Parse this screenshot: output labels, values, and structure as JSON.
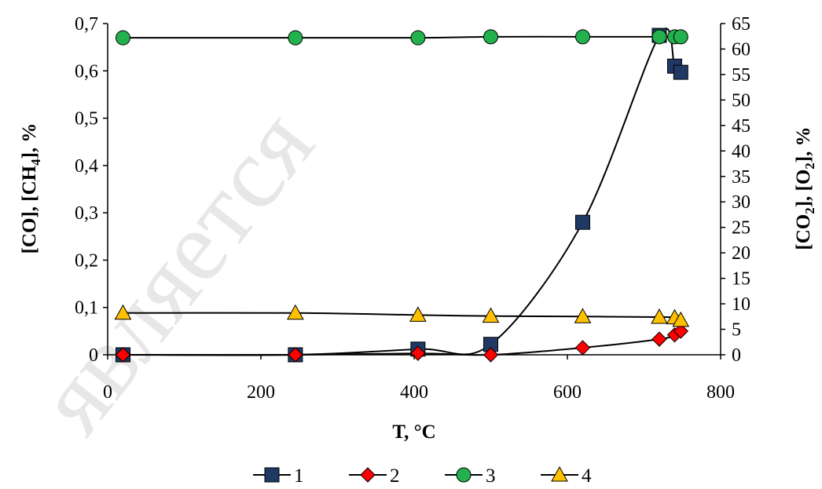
{
  "chart_data": {
    "type": "scatter",
    "xlabel": "T, °C",
    "ylabel_left": "[CO], [CH4], %",
    "ylabel_left_parts": [
      "[CO], [CH",
      "4",
      "], %"
    ],
    "ylabel_right": "[CO2], [O2], %",
    "ylabel_right_parts": [
      "[CO",
      "2",
      "], [O",
      "2",
      "], %"
    ],
    "xlim": [
      0,
      800
    ],
    "xticks": [
      0,
      200,
      400,
      600,
      800
    ],
    "ylim_left": [
      0,
      0.7
    ],
    "yticks_left": [
      "0",
      "0,1",
      "0,2",
      "0,3",
      "0,4",
      "0,5",
      "0,6",
      "0,7"
    ],
    "ylim_right": [
      0,
      65
    ],
    "yticks_right": [
      "0",
      "5",
      "10",
      "15",
      "20",
      "25",
      "30",
      "35",
      "40",
      "45",
      "50",
      "55",
      "60",
      "65"
    ],
    "legend_position": "bottom",
    "watermark": "является",
    "series": [
      {
        "name": "1",
        "axis": "left",
        "marker": "square",
        "color": "#1F3864",
        "x": [
          20,
          245,
          405,
          500,
          620,
          720,
          740,
          748
        ],
        "y": [
          0,
          0,
          0.012,
          0.022,
          0.28,
          0.675,
          0.61,
          0.597
        ]
      },
      {
        "name": "2",
        "axis": "left",
        "marker": "diamond",
        "color": "#FF0000",
        "x": [
          20,
          245,
          405,
          500,
          620,
          720,
          740,
          748
        ],
        "y": [
          0,
          0,
          0.003,
          0,
          0.015,
          0.033,
          0.042,
          0.05
        ]
      },
      {
        "name": "3",
        "axis": "right",
        "marker": "circle",
        "color": "#22B14C",
        "x": [
          20,
          245,
          405,
          500,
          620,
          720,
          740,
          748
        ],
        "y": [
          62.2,
          62.2,
          62.2,
          62.4,
          62.4,
          62.4,
          62.4,
          62.4
        ]
      },
      {
        "name": "4",
        "axis": "right",
        "marker": "triangle",
        "color": "#FFC000",
        "x": [
          20,
          245,
          405,
          500,
          620,
          720,
          740,
          748
        ],
        "y": [
          8.2,
          8.2,
          7.8,
          7.6,
          7.5,
          7.4,
          7.3,
          6.8
        ]
      }
    ]
  }
}
